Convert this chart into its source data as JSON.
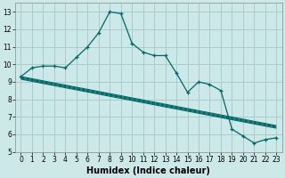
{
  "xlabel": "Humidex (Indice chaleur)",
  "background_color": "#cce8e8",
  "grid_color": "#aacccc",
  "line_color": "#006666",
  "xlim": [
    -0.5,
    23.5
  ],
  "ylim": [
    5,
    13.5
  ],
  "yticks": [
    5,
    6,
    7,
    8,
    9,
    10,
    11,
    12,
    13
  ],
  "xticks": [
    0,
    1,
    2,
    3,
    4,
    5,
    6,
    7,
    8,
    9,
    10,
    11,
    12,
    13,
    14,
    15,
    16,
    17,
    18,
    19,
    20,
    21,
    22,
    23
  ],
  "main_x": [
    0,
    1,
    2,
    3,
    4,
    5,
    6,
    7,
    8,
    9,
    10,
    11,
    12,
    13,
    14,
    15,
    16,
    17,
    18,
    19,
    20,
    21,
    22,
    23
  ],
  "main_y": [
    9.3,
    9.8,
    9.9,
    9.9,
    9.8,
    10.4,
    11.0,
    11.8,
    13.0,
    12.9,
    11.2,
    10.7,
    10.5,
    10.5,
    9.5,
    8.4,
    9.0,
    8.85,
    8.5,
    6.3,
    5.9,
    5.5,
    5.7,
    5.8
  ],
  "diag_lines": [
    {
      "x0": 0,
      "y0": 9.3,
      "x1": 23,
      "y1": 6.5
    },
    {
      "x0": 0,
      "y0": 9.25,
      "x1": 23,
      "y1": 6.45
    },
    {
      "x0": 0,
      "y0": 9.2,
      "x1": 23,
      "y1": 6.4
    },
    {
      "x0": 0,
      "y0": 9.15,
      "x1": 23,
      "y1": 6.35
    }
  ],
  "xlabel_fontsize": 7,
  "tick_fontsize": 5.5
}
